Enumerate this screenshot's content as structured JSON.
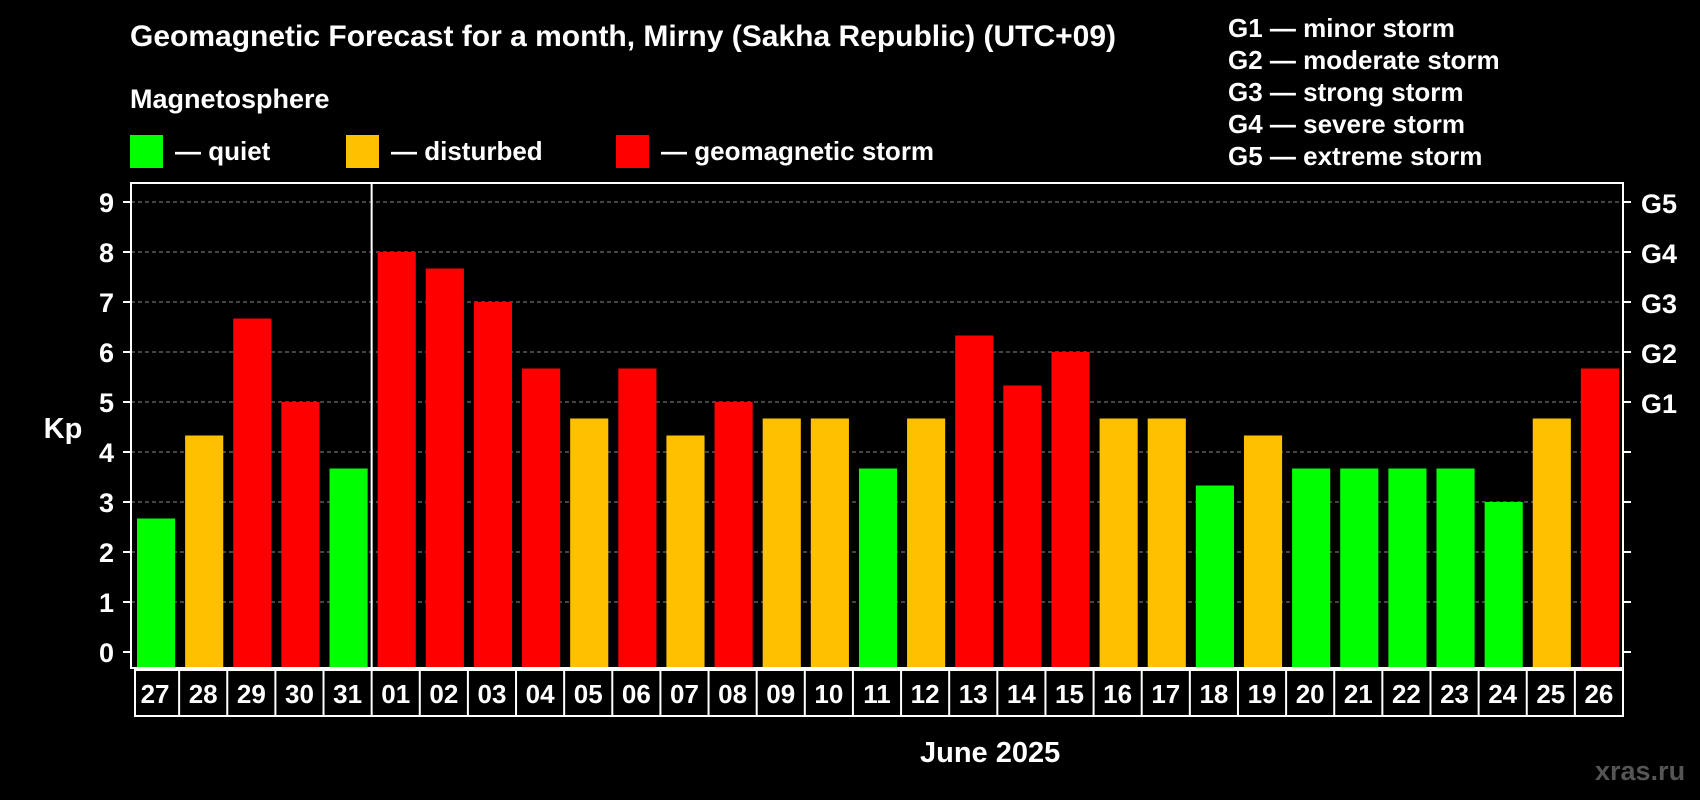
{
  "title": "Geomagnetic Forecast for a month, Mirny (Sakha Republic) (UTC+09)",
  "legend": {
    "heading": "Magnetosphere",
    "items": [
      {
        "label": "— quiet",
        "color": "#00ff00"
      },
      {
        "label": "— disturbed",
        "color": "#ffc000"
      },
      {
        "label": "— geomagnetic storm",
        "color": "#ff0000"
      }
    ]
  },
  "storm_scale": [
    "G1 — minor storm",
    "G2 — moderate storm",
    "G3 — strong storm",
    "G4 — severe storm",
    "G5 — extreme storm"
  ],
  "watermark": "xras.ru",
  "chart_data": {
    "type": "bar",
    "title": "Geomagnetic Forecast for a month, Mirny (Sakha Republic) (UTC+09)",
    "ylabel": "Kp",
    "xlabel": "June 2025",
    "ylim": [
      0,
      9
    ],
    "yticks": [
      "0",
      "1",
      "2",
      "3",
      "4",
      "5",
      "6",
      "7",
      "8",
      "9"
    ],
    "right_axis_labels": [
      {
        "kp": 5,
        "label": "G1"
      },
      {
        "kp": 6,
        "label": "G2"
      },
      {
        "kp": 7,
        "label": "G3"
      },
      {
        "kp": 8,
        "label": "G4"
      },
      {
        "kp": 9,
        "label": "G5"
      }
    ],
    "grid": "dashed horizontal",
    "categories": [
      "27",
      "28",
      "29",
      "30",
      "31",
      "01",
      "02",
      "03",
      "04",
      "05",
      "06",
      "07",
      "08",
      "09",
      "10",
      "11",
      "12",
      "13",
      "14",
      "15",
      "16",
      "17",
      "18",
      "19",
      "20",
      "21",
      "22",
      "23",
      "24",
      "25",
      "26"
    ],
    "values": [
      2.67,
      4.33,
      6.67,
      5.0,
      3.67,
      8.0,
      7.67,
      7.0,
      5.67,
      4.67,
      5.67,
      4.33,
      5.0,
      4.67,
      4.67,
      3.67,
      4.67,
      6.33,
      5.33,
      6.0,
      4.67,
      4.67,
      3.33,
      4.33,
      3.67,
      3.67,
      3.67,
      3.67,
      3.0,
      4.67,
      5.67
    ],
    "levels": [
      "quiet",
      "disturbed",
      "storm",
      "storm",
      "quiet",
      "storm",
      "storm",
      "storm",
      "storm",
      "disturbed",
      "storm",
      "disturbed",
      "storm",
      "disturbed",
      "disturbed",
      "quiet",
      "disturbed",
      "storm",
      "storm",
      "storm",
      "disturbed",
      "disturbed",
      "quiet",
      "disturbed",
      "quiet",
      "quiet",
      "quiet",
      "quiet",
      "quiet",
      "disturbed",
      "storm"
    ],
    "level_colors": {
      "quiet": "#00ff00",
      "disturbed": "#ffc000",
      "storm": "#ff0000"
    },
    "month_separator_after": "31"
  }
}
